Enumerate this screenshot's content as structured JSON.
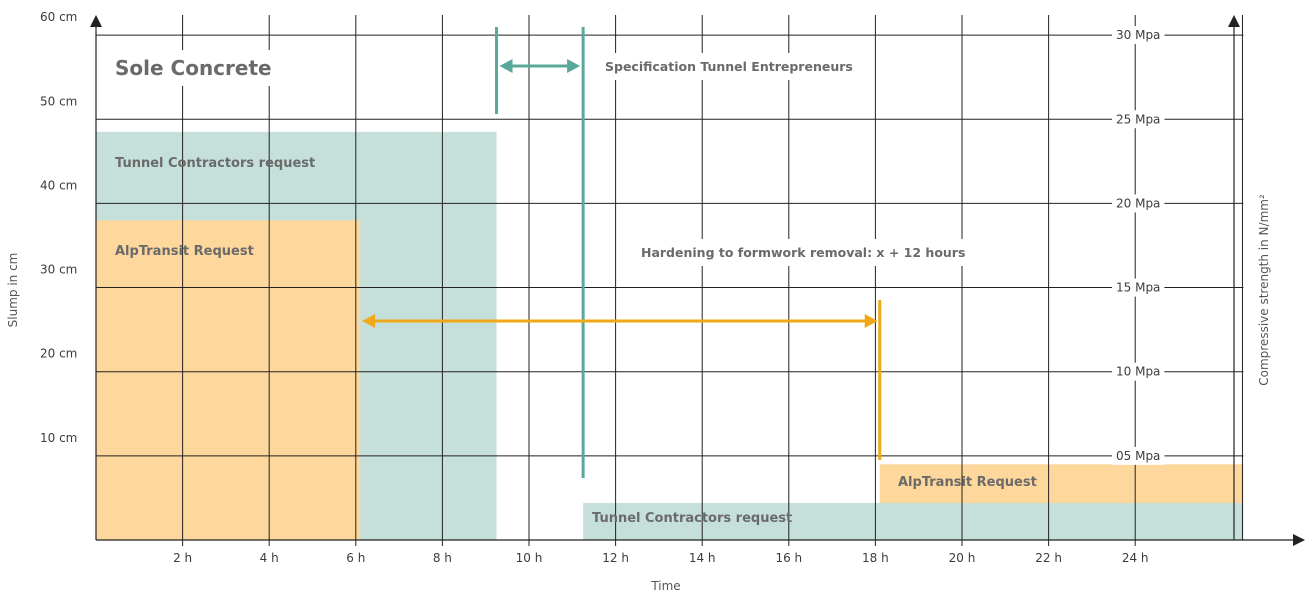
{
  "chart_data": {
    "type": "area",
    "title": "Sole Concrete",
    "xlabel": "Time",
    "ylabel": "Slump in cm",
    "y2label": "Compressive strength in N/mm²",
    "xlim": [
      0,
      26.5
    ],
    "ylim": [
      0,
      65
    ],
    "x_ticks": [
      {
        "value": 2,
        "label": "2 h"
      },
      {
        "value": 4,
        "label": "4 h"
      },
      {
        "value": 6,
        "label": "6 h"
      },
      {
        "value": 8,
        "label": "8 h"
      },
      {
        "value": 10,
        "label": "10 h"
      },
      {
        "value": 12,
        "label": "12 h"
      },
      {
        "value": 14,
        "label": "14 h"
      },
      {
        "value": 16,
        "label": "16 h"
      },
      {
        "value": 18,
        "label": "18 h"
      },
      {
        "value": 20,
        "label": "20 h"
      },
      {
        "value": 22,
        "label": "22 h"
      },
      {
        "value": 24,
        "label": "24 h"
      }
    ],
    "y_ticks": [
      {
        "value": 10,
        "label": "10 cm"
      },
      {
        "value": 20,
        "label": "20 cm"
      },
      {
        "value": 30,
        "label": "30 cm"
      },
      {
        "value": 40,
        "label": "40 cm"
      },
      {
        "value": 50,
        "label": "50 cm"
      },
      {
        "value": 60,
        "label": "60 cm"
      }
    ],
    "y2_ticks": [
      {
        "value": 5,
        "label": "05 Mpa"
      },
      {
        "value": 10,
        "label": "10 Mpa"
      },
      {
        "value": 15,
        "label": "15 Mpa"
      },
      {
        "value": 20,
        "label": "20 Mpa"
      },
      {
        "value": 25,
        "label": "25 Mpa"
      },
      {
        "value": 30,
        "label": "30 Mpa"
      }
    ],
    "regions": [
      {
        "label": "Tunnel Contractors request",
        "axis": "slump",
        "x": [
          0,
          9.25
        ],
        "y": [
          0,
          48.5
        ],
        "color": "#c5e0da"
      },
      {
        "label": "AlpTransit Request",
        "axis": "slump",
        "x": [
          0,
          6.1
        ],
        "y": [
          0,
          38
        ],
        "color": "#fdd79c"
      },
      {
        "label": "Tunnel Contractors request",
        "axis": "strength",
        "x": [
          11.25,
          26.5
        ],
        "y": [
          0,
          2.2
        ],
        "color": "#c5e0da"
      },
      {
        "label": "AlpTransit Request",
        "axis": "strength",
        "x": [
          18.1,
          26.5
        ],
        "y": [
          2.2,
          4.5
        ],
        "color": "#fdd79c"
      }
    ],
    "annotations": [
      {
        "label": "Specification Tunnel Entrepreneurs",
        "from": 9.25,
        "to": 11.25,
        "color": "#5aa89a"
      },
      {
        "label": "Hardening to formwork removal: x + 12 hours",
        "from": 6.1,
        "to": 18.1,
        "color": "#f0a818"
      }
    ],
    "colors": {
      "teal": "#5aa89a",
      "orange": "#f0a818",
      "grid": "#222222"
    }
  }
}
